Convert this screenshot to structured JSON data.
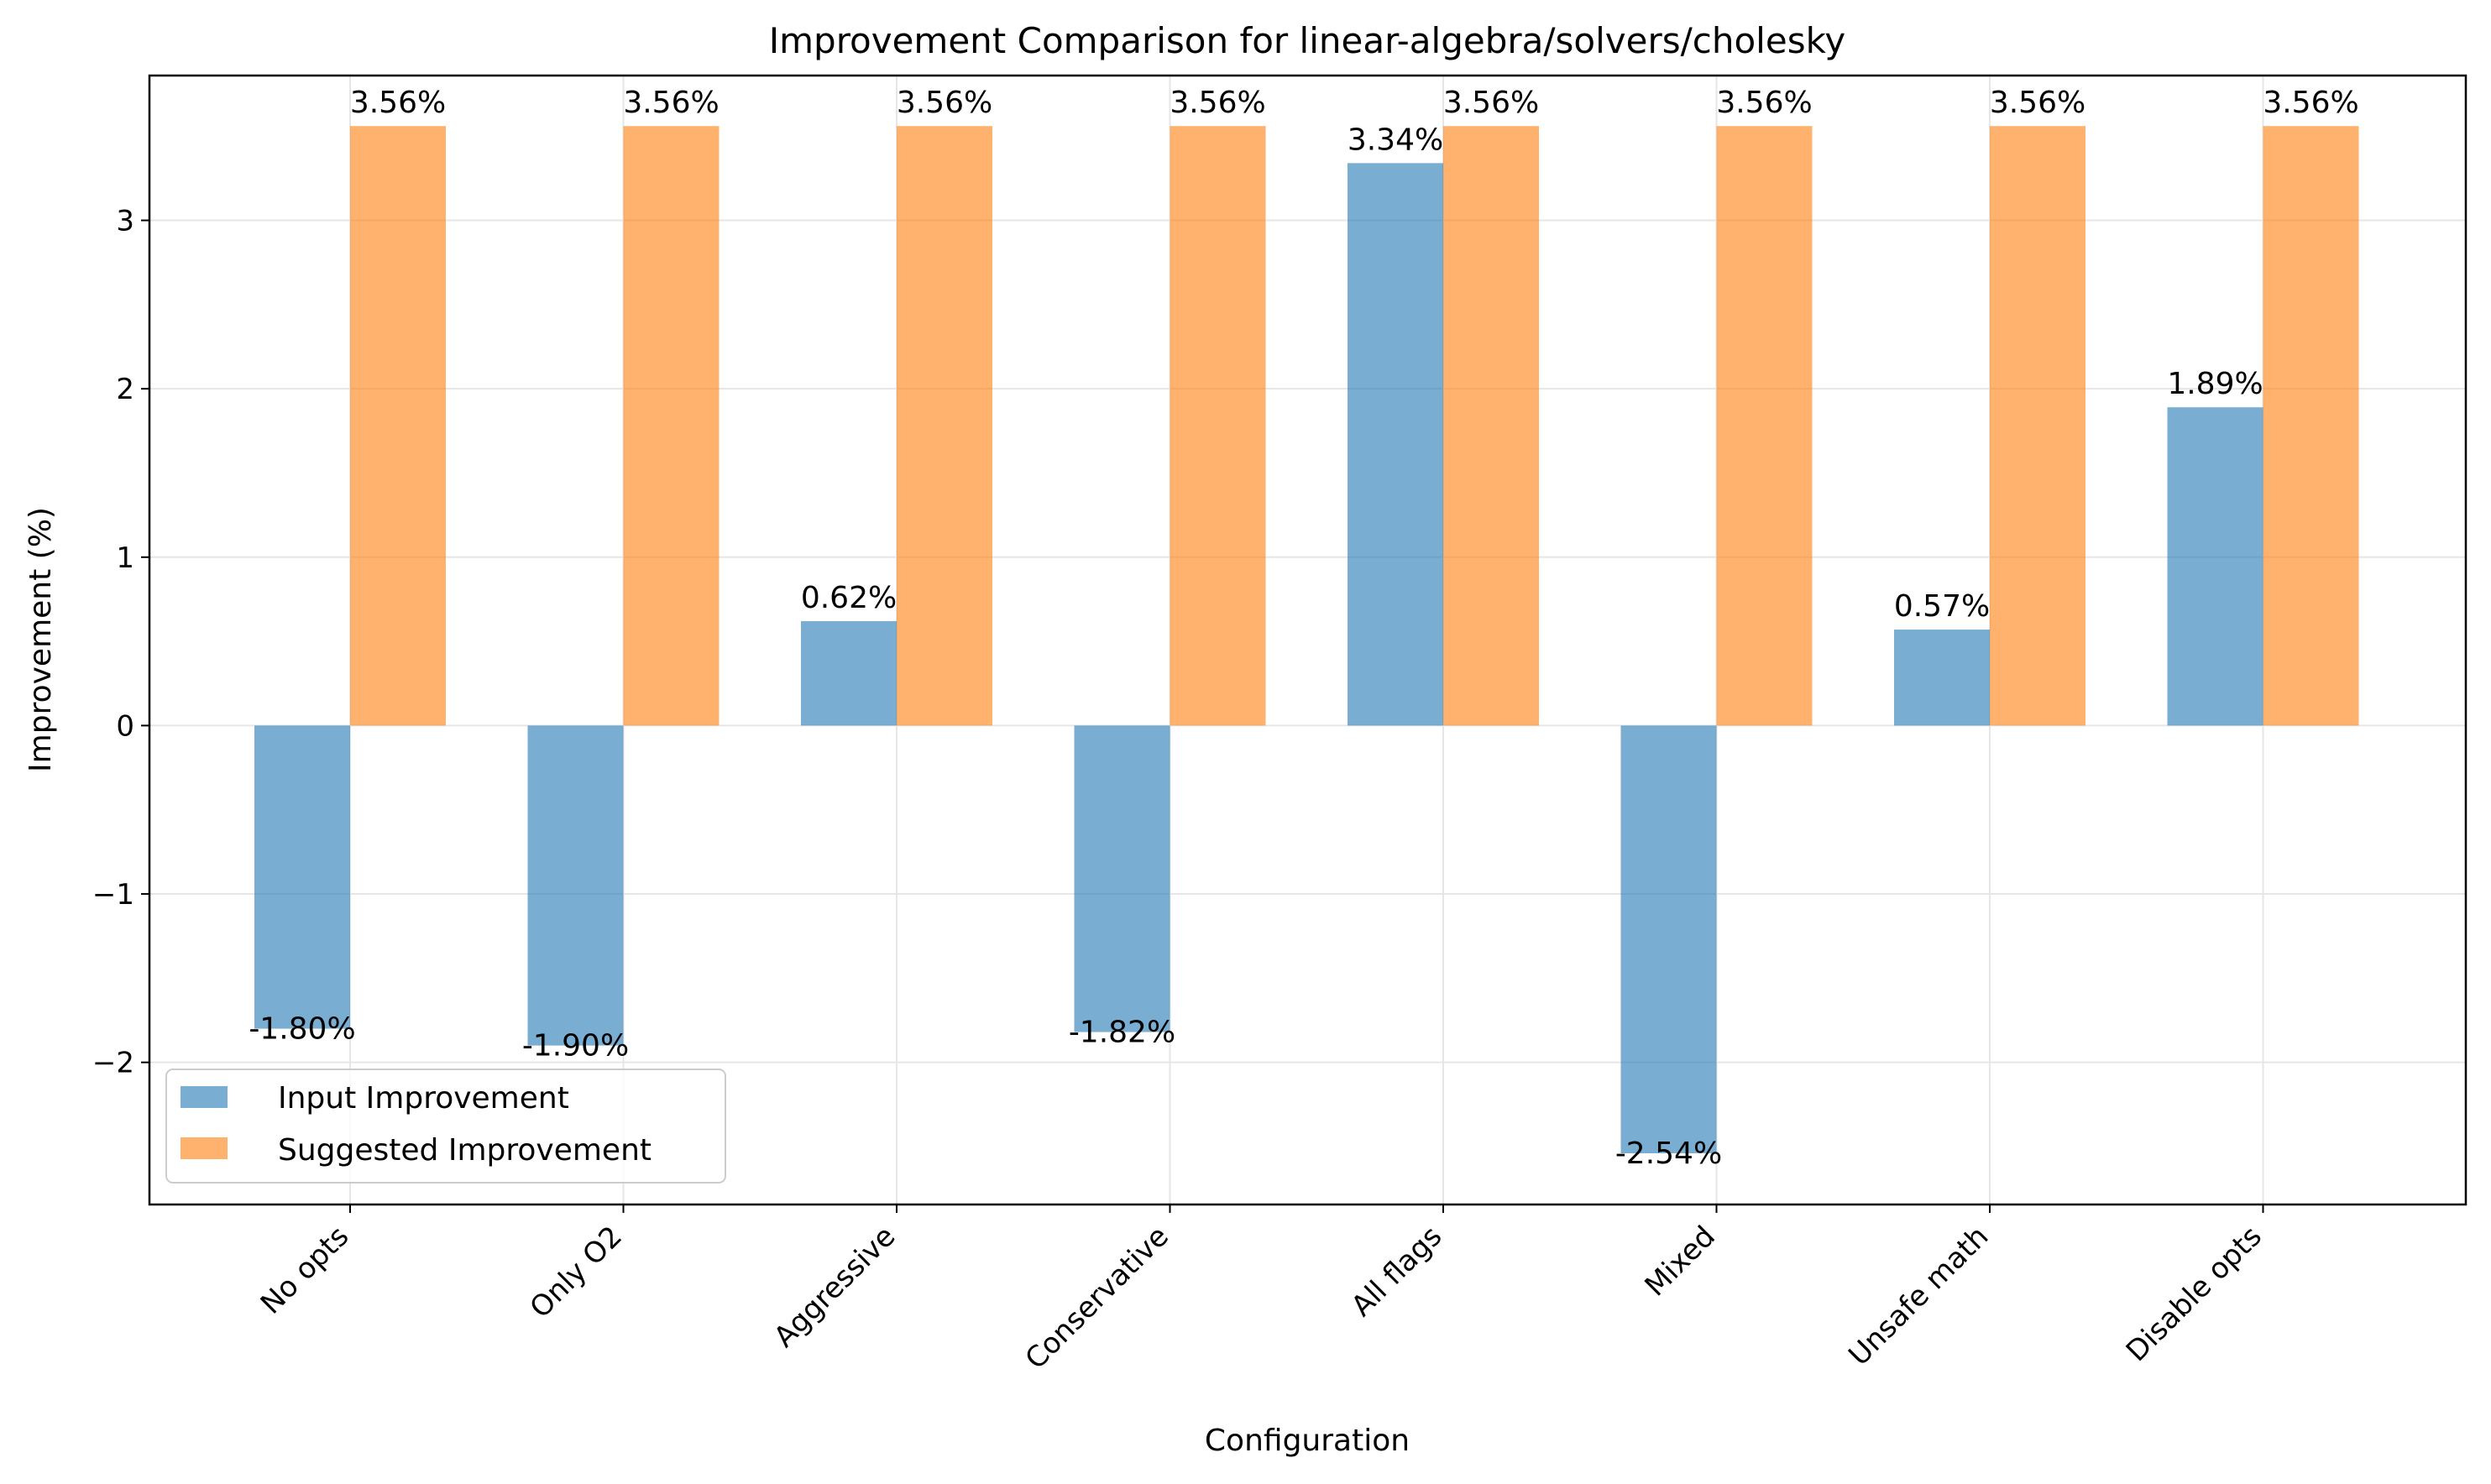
{
  "chart_data": {
    "type": "bar",
    "title": "Improvement Comparison for linear-algebra/solvers/cholesky",
    "xlabel": "Configuration",
    "ylabel": "Improvement (%)",
    "categories": [
      "No opts",
      "Only O2",
      "Aggressive",
      "Conservative",
      "All flags",
      "Mixed",
      "Unsafe math",
      "Disable opts"
    ],
    "series": [
      {
        "name": "Input Improvement",
        "color": "#1f77b4",
        "values": [
          -1.8,
          -1.9,
          0.62,
          -1.82,
          3.34,
          -2.54,
          0.57,
          1.89
        ],
        "labels": [
          "-1.80%",
          "-1.90%",
          "0.62%",
          "-1.82%",
          "3.34%",
          "-2.54%",
          "0.57%",
          "1.89%"
        ]
      },
      {
        "name": "Suggested Improvement",
        "color": "#ff7f0e",
        "values": [
          3.56,
          3.56,
          3.56,
          3.56,
          3.56,
          3.56,
          3.56,
          3.56
        ],
        "labels": [
          "3.56%",
          "3.56%",
          "3.56%",
          "3.56%",
          "3.56%",
          "3.56%",
          "3.56%",
          "3.56%"
        ]
      }
    ],
    "ylim": [
      -2.844,
      3.86
    ],
    "yticks": [
      -2,
      -1,
      0,
      1,
      2,
      3
    ],
    "ytick_labels": [
      "−2",
      "−1",
      "0",
      "1",
      "2",
      "3"
    ],
    "grid": true,
    "legend_position": "lower-left"
  }
}
